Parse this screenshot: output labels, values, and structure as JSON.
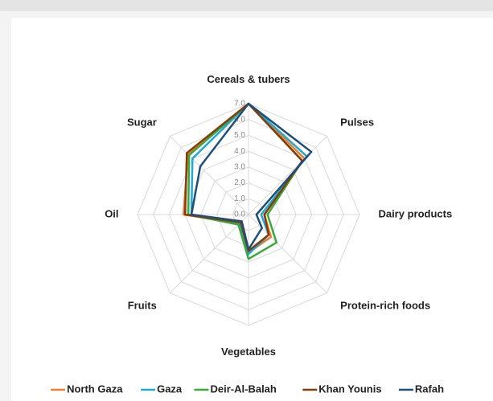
{
  "chart_data": {
    "type": "radar",
    "categories": [
      "Cereals & tubers",
      "Pulses",
      "Dairy products",
      "Protein-rich foods",
      "Vegetables",
      "Fruits",
      "Oil",
      "Sugar"
    ],
    "rlim": [
      0,
      7
    ],
    "rticks": [
      {
        "value": 0,
        "label": "0.0"
      },
      {
        "value": 1,
        "label": "1.0"
      },
      {
        "value": 2,
        "label": "2.0"
      },
      {
        "value": 3,
        "label": "3.0"
      },
      {
        "value": 4,
        "label": "4.0"
      },
      {
        "value": 5,
        "label": "5.0"
      },
      {
        "value": 6,
        "label": "6.0"
      },
      {
        "value": 7,
        "label": "7.0"
      }
    ],
    "grid": true,
    "legend": "bottom",
    "series": [
      {
        "name": "North Gaza",
        "color": "#ed7d31",
        "values": [
          7,
          5.0,
          1.0,
          2.0,
          2.4,
          0.8,
          4.1,
          5.4
        ]
      },
      {
        "name": "Gaza",
        "color": "#21a9d4",
        "values": [
          7,
          5.2,
          0.8,
          1.8,
          2.5,
          0.8,
          3.6,
          5.0
        ]
      },
      {
        "name": "Deir-Al-Balah",
        "color": "#3aa83a",
        "values": [
          7,
          4.8,
          1.2,
          2.5,
          2.8,
          0.9,
          3.8,
          5.3
        ]
      },
      {
        "name": "Khan Younis",
        "color": "#843c0c",
        "values": [
          7,
          4.8,
          1.0,
          1.8,
          2.3,
          0.7,
          4.0,
          5.5
        ]
      },
      {
        "name": "Rafah",
        "color": "#1f4e79",
        "values": [
          7,
          5.6,
          0.5,
          1.2,
          2.2,
          0.6,
          3.6,
          4.3
        ]
      }
    ]
  }
}
